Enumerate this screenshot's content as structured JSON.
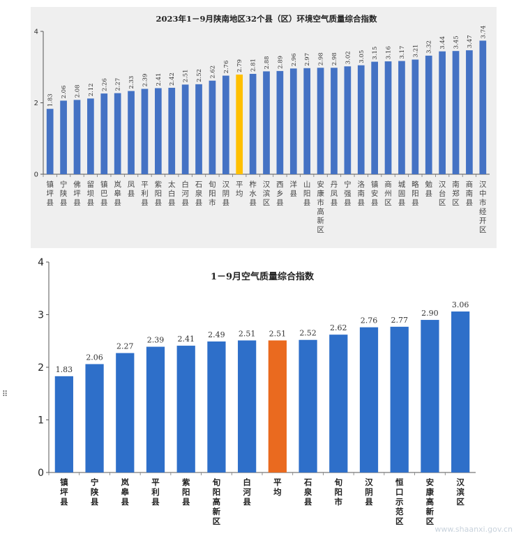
{
  "chart_data": [
    {
      "type": "bar",
      "title": "2023年1－9月陕南地区32个县（区）环境空气质量综合指数",
      "categories": [
        "镇坪县",
        "宁陕县",
        "佛坪县",
        "留坝县",
        "镇巴县",
        "岚皋县",
        "凤县",
        "平利县",
        "紫阳县",
        "太白县",
        "白河县",
        "石泉县",
        "旬阳市",
        "汉阴县",
        "平均",
        "柞水县",
        "汉滨区",
        "西乡县",
        "洋县",
        "山阳县",
        "安康市高新区",
        "丹凤县",
        "宁强县",
        "洛南县",
        "镇安县",
        "商州区",
        "城固县",
        "略阳县",
        "勉县",
        "汉台区",
        "南郑区",
        "商南县",
        "汉中市经开区"
      ],
      "values": [
        1.83,
        2.06,
        2.08,
        2.12,
        2.26,
        2.27,
        2.33,
        2.39,
        2.41,
        2.42,
        2.51,
        2.52,
        2.62,
        2.76,
        2.79,
        2.81,
        2.88,
        2.89,
        2.96,
        2.97,
        2.98,
        2.98,
        3.02,
        3.05,
        3.15,
        3.16,
        3.17,
        3.21,
        3.32,
        3.44,
        3.45,
        3.47,
        3.74
      ],
      "value_labels": [
        "1.83",
        "2.06",
        "2.08",
        "2.12",
        "2.26",
        "2.27",
        "2.33",
        "2.39",
        "2.41",
        "2.42",
        "2.51",
        "2.52",
        "2.62",
        "2.76",
        "2.79",
        "2.81",
        "2.88",
        "2.89",
        "2.96",
        "2.97",
        "2.98",
        "2.98",
        "3.02",
        "3.05",
        "3.15",
        "3.16",
        "3.17",
        "3.21",
        "3.32",
        "3.44",
        "3.45",
        "3.47",
        "3.74"
      ],
      "highlight": "平均",
      "bar_color": "#4472c4",
      "highlight_color": "#ffc000",
      "yticks": [
        "0",
        "2",
        "4"
      ],
      "ylim": [
        0,
        4
      ],
      "background": "#efefef",
      "grid": false
    },
    {
      "type": "bar",
      "title": "1－9月空气质量综合指数",
      "categories": [
        "镇坪县",
        "宁陕县",
        "岚皋县",
        "平利县",
        "紫阳县",
        "旬阳高新区",
        "白河县",
        "平均",
        "石泉县",
        "旬阳市",
        "汉阴县",
        "恒口示范区",
        "安康高新区",
        "汉滨区"
      ],
      "values": [
        1.83,
        2.06,
        2.27,
        2.39,
        2.41,
        2.49,
        2.51,
        2.51,
        2.52,
        2.62,
        2.76,
        2.77,
        2.9,
        3.06
      ],
      "value_labels": [
        "1.83",
        "2.06",
        "2.27",
        "2.39",
        "2.41",
        "2.49",
        "2.51",
        "2.51",
        "2.52",
        "2.62",
        "2.76",
        "2.77",
        "2.90",
        "3.06"
      ],
      "highlight": "平均",
      "bar_color": "#2e6fc9",
      "highlight_color": "#ea6a1f",
      "yticks": [
        "0",
        "1",
        "2",
        "3",
        "4"
      ],
      "ylim": [
        0,
        4
      ],
      "grid": false
    }
  ],
  "page": {
    "side_mark": "⠿",
    "watermark": "www.shaanxi.gov.cn"
  }
}
